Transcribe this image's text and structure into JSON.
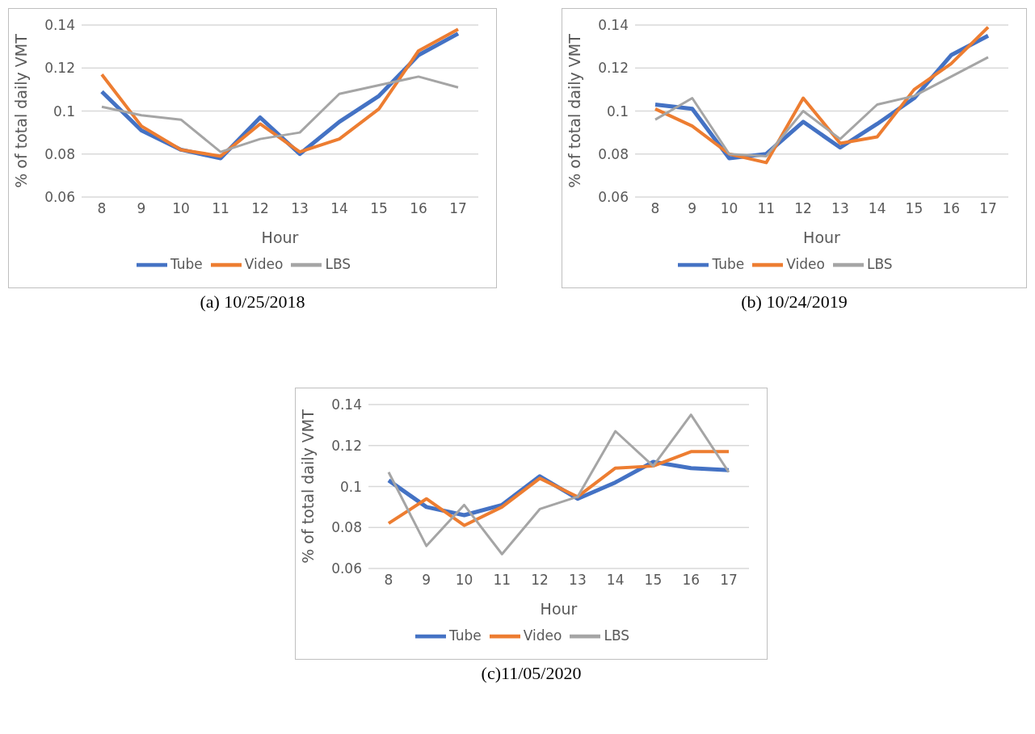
{
  "chart_data": [
    {
      "type": "line",
      "title": "(a) 10/25/2018",
      "xlabel": "Hour",
      "ylabel": "% of total daily VMT",
      "categories": [
        "8",
        "9",
        "10",
        "11",
        "12",
        "13",
        "14",
        "15",
        "16",
        "17"
      ],
      "ylim": [
        0.06,
        0.14
      ],
      "yticks": [
        0.06,
        0.08,
        0.1,
        0.12,
        0.14
      ],
      "grid": "y",
      "legend": "bottom",
      "marker": "none",
      "line_style": "solid",
      "series": [
        {
          "name": "Tube",
          "color": "#4472c4",
          "values": [
            0.109,
            0.091,
            0.082,
            0.078,
            0.097,
            0.08,
            0.095,
            0.107,
            0.126,
            0.136
          ]
        },
        {
          "name": "Video",
          "color": "#ed7d31",
          "values": [
            0.117,
            0.093,
            0.082,
            0.079,
            0.094,
            0.081,
            0.087,
            0.101,
            0.128,
            0.138
          ]
        },
        {
          "name": "LBS",
          "color": "#a5a5a5",
          "values": [
            0.102,
            0.098,
            0.096,
            0.081,
            0.087,
            0.09,
            0.108,
            0.112,
            0.116,
            0.111
          ]
        }
      ]
    },
    {
      "type": "line",
      "title": "(b) 10/24/2019",
      "xlabel": "Hour",
      "ylabel": "% of total daily VMT",
      "categories": [
        "8",
        "9",
        "10",
        "11",
        "12",
        "13",
        "14",
        "15",
        "16",
        "17"
      ],
      "ylim": [
        0.06,
        0.14
      ],
      "yticks": [
        0.06,
        0.08,
        0.1,
        0.12,
        0.14
      ],
      "grid": "y",
      "legend": "bottom",
      "marker": "none",
      "line_style": "solid",
      "series": [
        {
          "name": "Tube",
          "color": "#4472c4",
          "values": [
            0.103,
            0.101,
            0.078,
            0.08,
            0.095,
            0.083,
            0.094,
            0.106,
            0.126,
            0.135
          ]
        },
        {
          "name": "Video",
          "color": "#ed7d31",
          "values": [
            0.101,
            0.093,
            0.08,
            0.076,
            0.106,
            0.085,
            0.088,
            0.11,
            0.122,
            0.139
          ]
        },
        {
          "name": "LBS",
          "color": "#a5a5a5",
          "values": [
            0.096,
            0.106,
            0.08,
            0.079,
            0.1,
            0.087,
            0.103,
            0.107,
            0.116,
            0.125
          ]
        }
      ]
    },
    {
      "type": "line",
      "title": "(c)11/05/2020",
      "xlabel": "Hour",
      "ylabel": "% of total daily VMT",
      "categories": [
        "8",
        "9",
        "10",
        "11",
        "12",
        "13",
        "14",
        "15",
        "16",
        "17"
      ],
      "ylim": [
        0.06,
        0.14
      ],
      "yticks": [
        0.06,
        0.08,
        0.1,
        0.12,
        0.14
      ],
      "grid": "y",
      "legend": "bottom",
      "marker": "none",
      "line_style": "solid",
      "series": [
        {
          "name": "Tube",
          "color": "#4472c4",
          "values": [
            0.103,
            0.09,
            0.086,
            0.091,
            0.105,
            0.094,
            0.102,
            0.112,
            0.109,
            0.108
          ]
        },
        {
          "name": "Video",
          "color": "#ed7d31",
          "values": [
            0.082,
            0.094,
            0.081,
            0.09,
            0.104,
            0.095,
            0.109,
            0.11,
            0.117,
            0.117
          ]
        },
        {
          "name": "LBS",
          "color": "#a5a5a5",
          "values": [
            0.107,
            0.071,
            0.091,
            0.067,
            0.089,
            0.095,
            0.127,
            0.11,
            0.135,
            0.107
          ]
        }
      ]
    }
  ]
}
